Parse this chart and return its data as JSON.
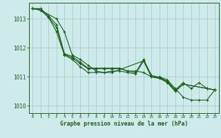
{
  "title": "Graphe pression niveau de la mer (hPa)",
  "xlabel": "Graphe pression niveau de la mer (hPa)",
  "background_color": "#ceeaea",
  "grid_color": "#aacccc",
  "line_color": "#1a5c1a",
  "ylim": [
    1009.75,
    1013.55
  ],
  "xlim": [
    -0.5,
    23.5
  ],
  "yticks": [
    1010,
    1011,
    1012,
    1013
  ],
  "xticks": [
    0,
    1,
    2,
    3,
    4,
    5,
    6,
    7,
    8,
    9,
    10,
    11,
    12,
    13,
    14,
    15,
    16,
    17,
    18,
    19,
    20,
    21,
    22,
    23
  ],
  "series": [
    {
      "x": [
        0,
        1,
        2,
        3,
        4,
        5,
        6,
        7,
        8,
        9,
        10,
        11,
        12,
        13,
        14,
        15,
        16,
        17,
        18,
        19,
        20,
        21,
        22,
        23
      ],
      "y": [
        1013.35,
        1013.35,
        1013.1,
        1012.8,
        1011.8,
        1011.7,
        1011.5,
        1011.3,
        1011.3,
        1011.3,
        1011.3,
        1011.3,
        1011.2,
        1011.2,
        1011.15,
        1011.0,
        1011.0,
        1010.9,
        1010.6,
        1010.3,
        1010.2,
        1010.2,
        1010.2,
        1010.55
      ]
    },
    {
      "x": [
        0,
        1,
        2,
        3,
        4,
        5,
        6,
        7,
        8,
        9,
        10,
        11,
        12,
        13,
        14,
        15,
        16,
        17,
        18,
        19,
        20,
        21,
        22,
        23
      ],
      "y": [
        1013.35,
        1013.3,
        1013.05,
        1012.7,
        1011.78,
        1011.65,
        1011.45,
        1011.28,
        1011.28,
        1011.28,
        1011.28,
        1011.28,
        1011.2,
        1011.15,
        1011.6,
        1011.05,
        1010.98,
        1010.85,
        1010.55,
        1010.8,
        1010.6,
        1010.8,
        1010.6,
        1010.55
      ]
    },
    {
      "x": [
        0,
        1,
        3,
        4,
        5,
        6,
        7,
        8,
        9,
        10,
        11,
        12,
        13,
        14,
        15,
        16,
        17,
        18,
        19,
        22,
        23
      ],
      "y": [
        1013.35,
        1013.3,
        1013.0,
        1012.55,
        1011.75,
        1011.6,
        1011.4,
        1011.2,
        1011.15,
        1011.2,
        1011.2,
        1011.15,
        1011.1,
        1011.55,
        1011.0,
        1010.95,
        1010.85,
        1010.5,
        1010.75,
        1010.6,
        1010.55
      ]
    },
    {
      "x": [
        0,
        1,
        2,
        3,
        4,
        5,
        6,
        7,
        8,
        9,
        10,
        14,
        15,
        16,
        17,
        18,
        19,
        22,
        23
      ],
      "y": [
        1013.35,
        1013.3,
        1013.05,
        1012.55,
        1011.75,
        1011.6,
        1011.35,
        1011.15,
        1011.15,
        1011.15,
        1011.15,
        1011.55,
        1011.0,
        1010.95,
        1010.8,
        1010.5,
        1010.75,
        1010.6,
        1010.55
      ]
    }
  ]
}
